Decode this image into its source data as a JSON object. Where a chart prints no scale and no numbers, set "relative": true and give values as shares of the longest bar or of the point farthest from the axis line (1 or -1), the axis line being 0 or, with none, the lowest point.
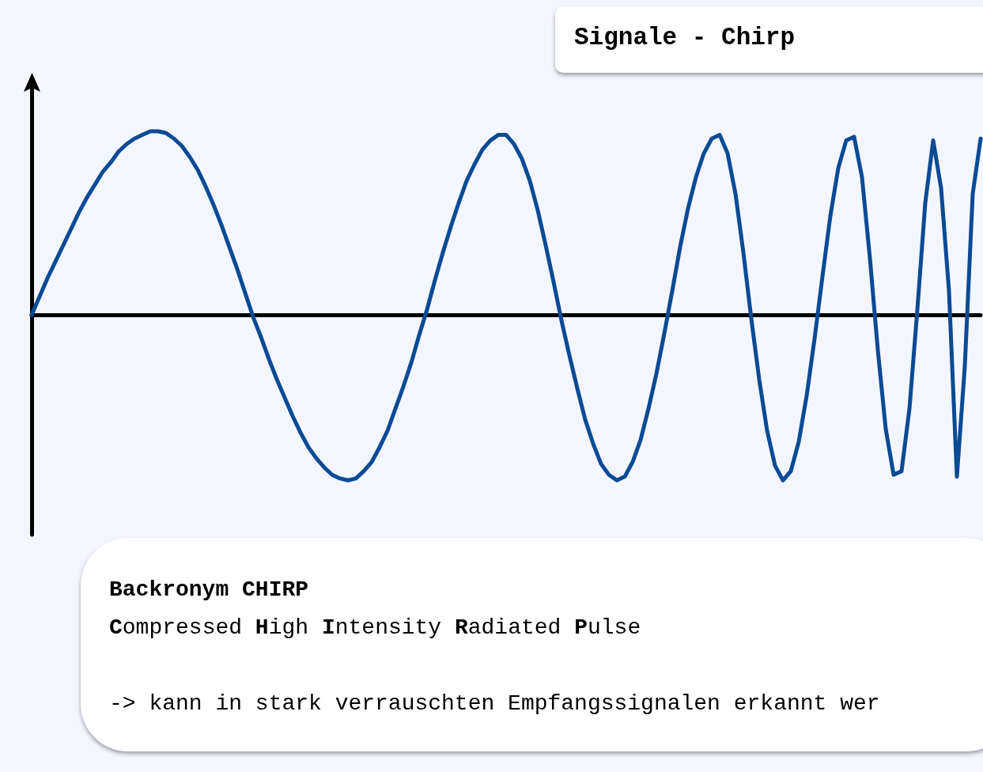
{
  "chart_data": {
    "type": "line",
    "title": "Signale - Chirp",
    "relative": true,
    "marker": "none",
    "line_style": "solid",
    "annotations": [
      "Backronym CHIRP",
      "Compressed High Intensity Radiated Pulse",
      "-> kann in stark verrauschten Empfangssignalen erkannt wer"
    ],
    "categories": [
      null,
      null,
      null,
      null,
      null,
      null,
      null,
      null,
      null,
      null,
      null,
      null,
      null,
      null,
      null,
      null,
      null,
      null,
      null,
      null,
      null,
      null,
      null,
      null,
      null,
      null,
      null,
      null,
      null,
      null,
      null,
      null,
      null,
      null,
      null,
      null,
      null,
      null,
      null,
      null,
      null,
      null,
      null,
      null,
      null,
      null,
      null,
      null,
      null,
      null,
      null,
      null,
      null,
      null,
      null,
      null,
      null,
      null,
      null,
      null,
      null,
      null,
      null,
      null,
      null,
      null,
      null,
      null,
      null,
      null,
      null,
      null,
      null,
      null,
      null,
      null,
      null,
      null,
      null,
      null,
      null,
      null,
      null,
      null,
      null,
      null,
      null,
      null,
      null,
      null,
      null,
      null,
      null,
      null,
      null,
      null,
      null,
      null,
      null,
      null,
      null,
      null,
      null,
      null,
      null,
      null,
      null,
      null,
      null,
      null,
      null,
      null,
      null,
      null,
      null,
      null,
      null,
      null,
      null,
      null,
      null
    ],
    "series": [
      {
        "color": "#0b4a94",
        "values": [
          0,
          0.1,
          0.2,
          0.29,
          0.38,
          0.47,
          0.56,
          0.64,
          0.71,
          0.78,
          0.83,
          0.89,
          0.93,
          0.96,
          0.98,
          1,
          1,
          0.99,
          0.96,
          0.92,
          0.86,
          0.79,
          0.7,
          0.6,
          0.49,
          0.37,
          0.25,
          0.12,
          -0.01,
          -0.12,
          -0.24,
          -0.35,
          -0.45,
          -0.55,
          -0.64,
          -0.72,
          -0.78,
          -0.83,
          -0.87,
          -0.89,
          -0.9,
          -0.89,
          -0.85,
          -0.8,
          -0.72,
          -0.63,
          -0.51,
          -0.39,
          -0.26,
          -0.11,
          0.03,
          0.19,
          0.34,
          0.48,
          0.61,
          0.73,
          0.82,
          0.9,
          0.95,
          0.98,
          0.98,
          0.93,
          0.85,
          0.73,
          0.57,
          0.38,
          0.18,
          -0.03,
          -0.22,
          -0.4,
          -0.57,
          -0.7,
          -0.81,
          -0.87,
          -0.9,
          -0.88,
          -0.8,
          -0.68,
          -0.51,
          -0.32,
          -0.1,
          0.13,
          0.37,
          0.58,
          0.75,
          0.88,
          0.96,
          0.98,
          0.88,
          0.66,
          0.34,
          -0.02,
          -0.35,
          -0.63,
          -0.82,
          -0.9,
          -0.85,
          -0.69,
          -0.44,
          -0.13,
          0.21,
          0.54,
          0.8,
          0.95,
          0.97,
          0.75,
          0.31,
          -0.19,
          -0.62,
          -0.87,
          -0.85,
          -0.51,
          0.03,
          0.61,
          0.95,
          0.69,
          0.13,
          -0.88,
          -0.28,
          0.66,
          0.96
        ]
      }
    ]
  }
}
